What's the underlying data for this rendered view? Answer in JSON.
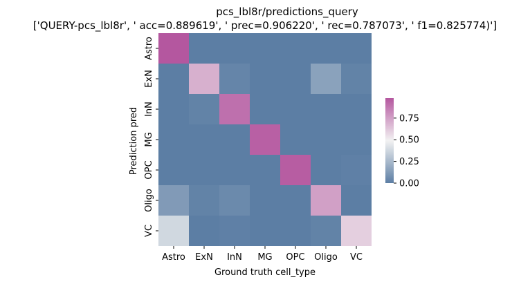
{
  "chart_data": {
    "type": "heatmap",
    "title": "pcs_lbl8r/predictions_query",
    "subtitle": "['QUERY-pcs_lbl8r', ' acc=0.889619', '  prec=0.906220', ' rec=0.787073', ' f1=0.825774)']",
    "xlabel": "Ground truth cell_type",
    "ylabel": "Prediction pred",
    "x_categories": [
      "Astro",
      "ExN",
      "InN",
      "MG",
      "OPC",
      "Oligo",
      "VC"
    ],
    "y_categories": [
      "Astro",
      "ExN",
      "InN",
      "MG",
      "OPC",
      "Oligo",
      "VC"
    ],
    "values": [
      [
        0.98,
        0.0,
        0.0,
        0.0,
        0.0,
        0.0,
        0.0
      ],
      [
        0.0,
        0.7,
        0.03,
        0.0,
        0.0,
        0.15,
        0.02
      ],
      [
        0.0,
        0.02,
        0.9,
        0.0,
        0.0,
        0.0,
        0.0
      ],
      [
        0.0,
        0.0,
        0.0,
        0.95,
        0.0,
        0.0,
        0.0
      ],
      [
        0.0,
        0.0,
        0.0,
        0.0,
        0.96,
        0.0,
        0.01
      ],
      [
        0.12,
        0.02,
        0.05,
        0.0,
        0.0,
        0.75,
        0.0
      ],
      [
        0.38,
        0.0,
        0.01,
        0.0,
        0.0,
        0.02,
        0.6
      ]
    ],
    "colorbar": {
      "min": 0.0,
      "max": 0.98,
      "ticks": [
        "0.00",
        "0.25",
        "0.50",
        "0.75"
      ],
      "tick_values": [
        0.0,
        0.25,
        0.5,
        0.75
      ]
    },
    "colors": {
      "low": "#5c7ea4",
      "mid": "#f2f2f2",
      "high": "#b4579f"
    }
  }
}
